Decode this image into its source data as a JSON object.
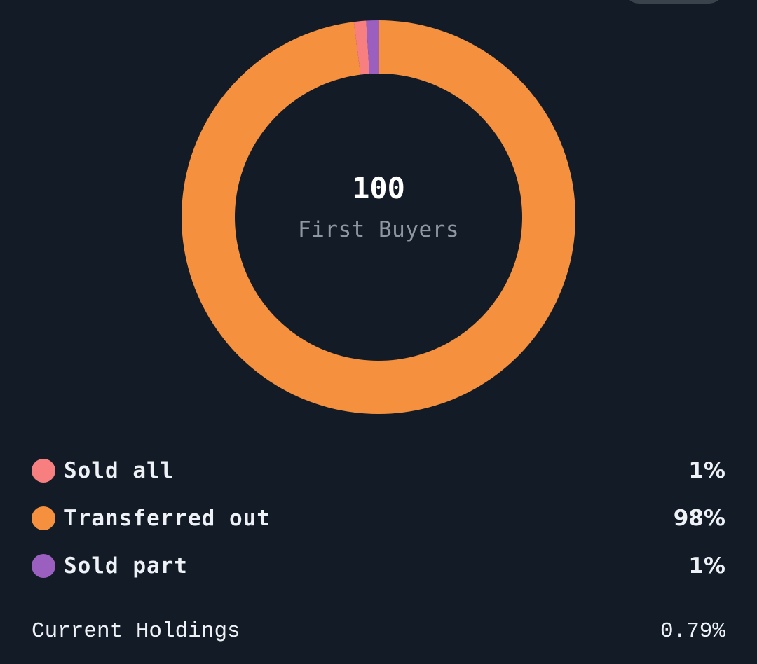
{
  "header": {
    "top_button_label": ""
  },
  "donut": {
    "center_value": "100",
    "center_caption": "First Buyers"
  },
  "legend": [
    {
      "label": "Sold all",
      "value": "1%",
      "color": "#f87f7f"
    },
    {
      "label": "Transferred out",
      "value": "98%",
      "color": "#f5913e"
    },
    {
      "label": "Sold part",
      "value": "1%",
      "color": "#9b5fc0"
    }
  ],
  "holdings": {
    "label": "Current Holdings",
    "value": "0.79%"
  },
  "colors": {
    "background": "#131c26",
    "sold_all": "#f87f7f",
    "transferred_out": "#f5913e",
    "sold_part": "#9b5fc0",
    "caption_gray": "#8e98a3"
  },
  "chart_data": {
    "type": "pie",
    "subtype": "donut",
    "title": "First Buyers",
    "center_text": "100",
    "categories": [
      "Sold all",
      "Transferred out",
      "Sold part"
    ],
    "values": [
      1,
      98,
      1
    ],
    "unit": "%",
    "colors": [
      "#f87f7f",
      "#f5913e",
      "#9b5fc0"
    ],
    "legend_position": "bottom",
    "extra": {
      "Current Holdings": "0.79%"
    }
  }
}
